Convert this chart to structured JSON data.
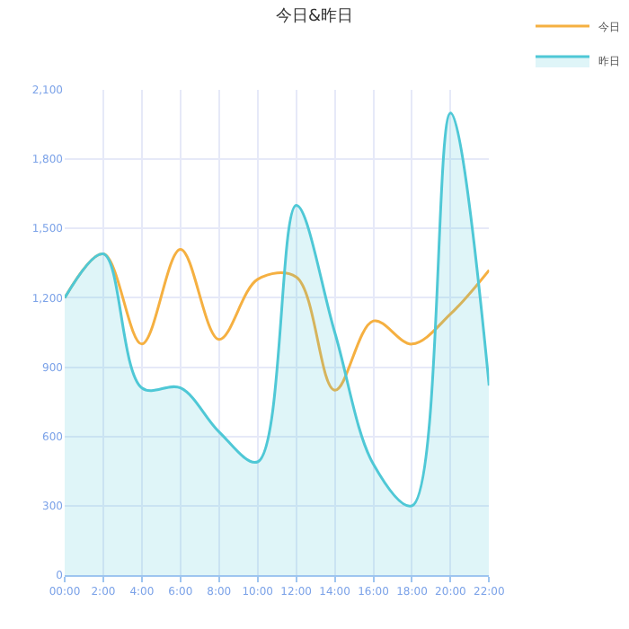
{
  "chart_data": {
    "type": "line",
    "title": "今日&昨日",
    "categories": [
      "00:00",
      "2:00",
      "4:00",
      "6:00",
      "8:00",
      "10:00",
      "12:00",
      "14:00",
      "16:00",
      "18:00",
      "20:00",
      "22:00"
    ],
    "series": [
      {
        "name": "今日",
        "color": "#f5b041",
        "type": "line",
        "values": [
          1200,
          1390,
          1000,
          1410,
          1020,
          1280,
          1290,
          800,
          1100,
          1000,
          1130,
          1320
        ]
      },
      {
        "name": "昨日",
        "color": "#4fc8d6",
        "type": "area",
        "values": [
          1200,
          1390,
          810,
          810,
          620,
          490,
          1600,
          1050,
          480,
          300,
          2000,
          820
        ]
      }
    ],
    "ylim": [
      0,
      2100
    ],
    "yticks": [
      {
        "value": 0,
        "label": "0"
      },
      {
        "value": 300,
        "label": "300"
      },
      {
        "value": 600,
        "label": "600"
      },
      {
        "value": 900,
        "label": "900"
      },
      {
        "value": 1200,
        "label": "1,200"
      },
      {
        "value": 1500,
        "label": "1,500"
      },
      {
        "value": 1800,
        "label": "1,800"
      },
      {
        "value": 2100,
        "label": "2,100"
      }
    ],
    "grid": true,
    "legend": "top right"
  }
}
